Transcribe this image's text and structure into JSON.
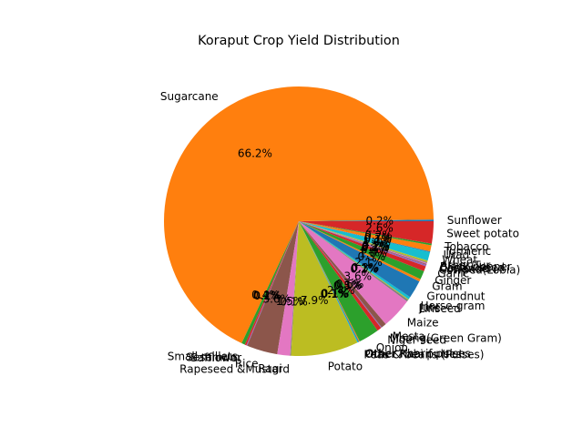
{
  "chart_data": {
    "type": "pie",
    "title": "Koraput Crop Yield Distribution",
    "start_angle_deg": 0,
    "direction": "counterclockwise",
    "colors": [
      "#1f77b4",
      "#ff7f0e",
      "#2ca02c",
      "#d62728",
      "#9467bd",
      "#8c564b",
      "#e377c2",
      "#7f7f7f",
      "#bcbd22",
      "#17becf"
    ],
    "slices": [
      {
        "label": "Sunflower",
        "value": 0.2
      },
      {
        "label": "Sugarcane",
        "value": 66.2
      },
      {
        "label": "Small millets",
        "value": 0.4
      },
      {
        "label": "Sesamum",
        "value": 0.2
      },
      {
        "label": "Safflower",
        "value": 0.1
      },
      {
        "label": "Rice",
        "value": 3.6
      },
      {
        "label": "Ragi",
        "value": 1.5
      },
      {
        "label": "Rapeseed &Mustard",
        "value": 0.1
      },
      {
        "label": "Potato",
        "value": 7.9
      },
      {
        "label": "Peas & beans (Pulses)",
        "value": 0.1
      },
      {
        "label": "Other Rabi pulses",
        "value": 0.1
      },
      {
        "label": "Other Kharif pulses",
        "value": 0.1
      },
      {
        "label": "Onion",
        "value": 2.4
      },
      {
        "label": "Niger seed",
        "value": 0.5
      },
      {
        "label": "Moong(Green Gram)",
        "value": 0.1
      },
      {
        "label": "Mesta",
        "value": 0.6
      },
      {
        "label": "Maize",
        "value": 3.6
      },
      {
        "label": "Linseed",
        "value": 0.2
      },
      {
        "label": "Jute",
        "value": 0.1
      },
      {
        "label": "Horse-gram",
        "value": 0.3
      },
      {
        "label": "Groundnut",
        "value": 2.1
      },
      {
        "label": "Gram",
        "value": 0.3
      },
      {
        "label": "Ginger",
        "value": 1.0
      },
      {
        "label": "Garlic",
        "value": 0.6
      },
      {
        "label": "Cowpea(Lobia)",
        "value": 0.2
      },
      {
        "label": "Coriander",
        "value": 0.1
      },
      {
        "label": "Castor seed",
        "value": 0.1
      },
      {
        "label": "Black pepper",
        "value": 0.1
      },
      {
        "label": "Arhar/Tur",
        "value": 0.2
      },
      {
        "label": "Wheat",
        "value": 1.0
      },
      {
        "label": "Urad",
        "value": 0.1
      },
      {
        "label": "Turmeric",
        "value": 0.7
      },
      {
        "label": "Tobacco",
        "value": 0.2
      },
      {
        "label": "Sweet potato",
        "value": 2.6
      }
    ]
  }
}
